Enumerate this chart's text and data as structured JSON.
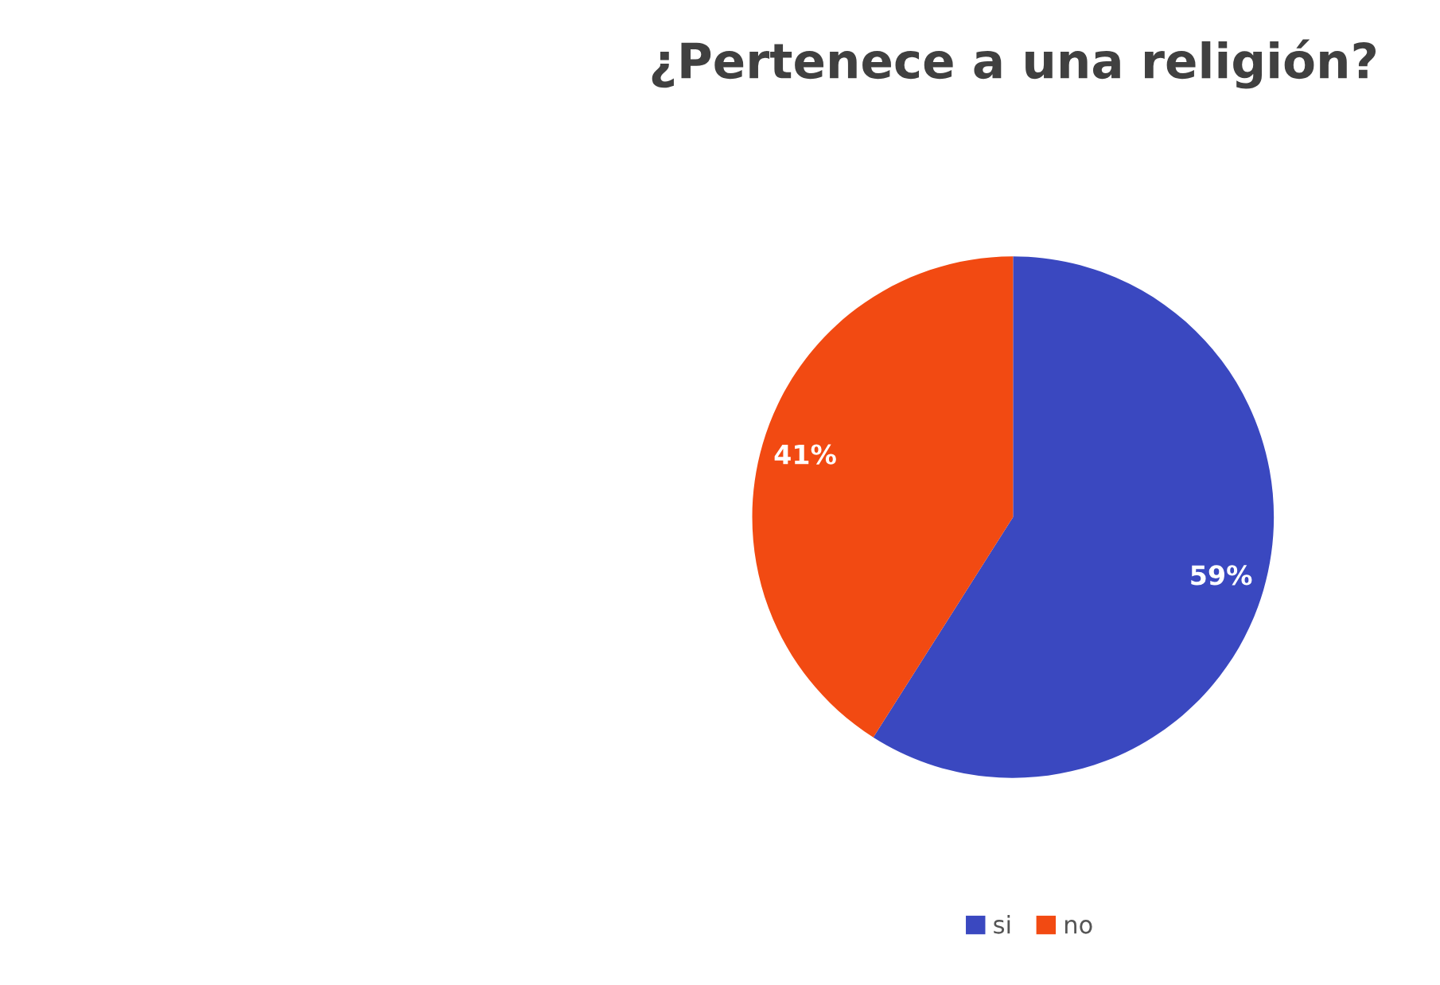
{
  "chart_data": {
    "type": "pie",
    "title": "¿Pertenece a una religión?",
    "categories": [
      "si",
      "no"
    ],
    "values": [
      59,
      41
    ],
    "colors": [
      "#3a48c0",
      "#f24a12"
    ],
    "value_labels": [
      "59%",
      "41%"
    ],
    "legend": "bottom"
  }
}
